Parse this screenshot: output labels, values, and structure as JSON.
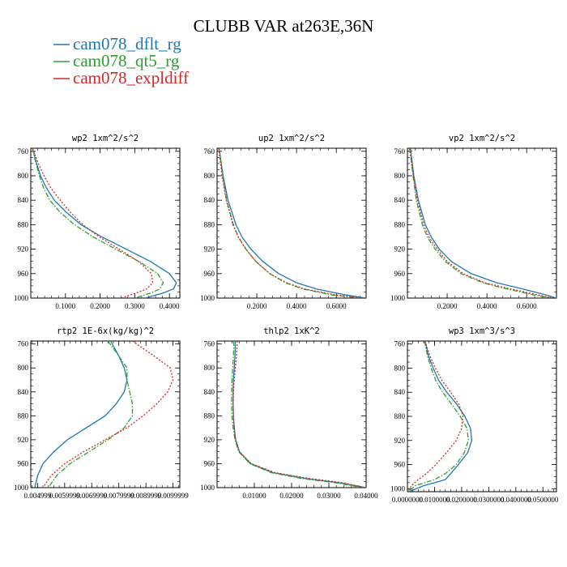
{
  "figure": {
    "title": "CLUBB VAR at263E,36N"
  },
  "legend": [
    {
      "label": "cam078_dflt_rg",
      "color": "#1f77b4",
      "dash": "solid"
    },
    {
      "label": "cam078_qt5_rg",
      "color": "#2ca02c",
      "dash": "dashdot"
    },
    {
      "label": "cam078_expldiff",
      "color": "#d62728",
      "dash": "dotted"
    }
  ],
  "chart_data": [
    {
      "type": "line",
      "title": "wp2  1xm^2/s^2",
      "xlim": [
        0,
        0.43
      ],
      "ylim": [
        1000,
        755
      ],
      "xticks": [
        0.1,
        0.2,
        0.3,
        0.4
      ],
      "xtick_labels": [
        "0.1000",
        "0.2000",
        "0.3000",
        "0.4000"
      ],
      "yticks": [
        760,
        800,
        840,
        880,
        920,
        960,
        1000
      ],
      "ytick_labels": [
        "760",
        "800",
        "840",
        "880",
        "920",
        "960",
        "1000"
      ],
      "series": [
        {
          "name": "cam078_dflt_rg",
          "y": [
            755,
            780,
            800,
            820,
            840,
            860,
            880,
            900,
            920,
            940,
            960,
            975,
            985,
            992,
            1000
          ],
          "x": [
            0.005,
            0.017,
            0.028,
            0.045,
            0.068,
            0.103,
            0.145,
            0.205,
            0.275,
            0.345,
            0.4,
            0.42,
            0.412,
            0.38,
            0.33
          ]
        },
        {
          "name": "cam078_qt5_rg",
          "y": [
            755,
            780,
            800,
            820,
            840,
            860,
            880,
            900,
            920,
            940,
            960,
            975,
            985,
            992,
            1000
          ],
          "x": [
            0.005,
            0.015,
            0.025,
            0.037,
            0.055,
            0.085,
            0.126,
            0.18,
            0.245,
            0.312,
            0.366,
            0.382,
            0.372,
            0.345,
            0.3
          ]
        },
        {
          "name": "cam078_expldiff",
          "y": [
            755,
            780,
            800,
            820,
            840,
            860,
            880,
            900,
            920,
            940,
            960,
            975,
            985,
            992,
            1000
          ],
          "x": [
            0.005,
            0.022,
            0.038,
            0.058,
            0.085,
            0.115,
            0.15,
            0.198,
            0.255,
            0.31,
            0.348,
            0.352,
            0.335,
            0.302,
            0.26
          ]
        }
      ]
    },
    {
      "type": "line",
      "title": "up2  1xm^2/s^2",
      "xlim": [
        0,
        0.75
      ],
      "ylim": [
        1000,
        755
      ],
      "xticks": [
        0.2,
        0.4,
        0.6
      ],
      "xtick_labels": [
        "0.2000",
        "0.4000",
        "0.6000"
      ],
      "yticks": [
        760,
        800,
        840,
        880,
        920,
        960,
        1000
      ],
      "ytick_labels": [
        "760",
        "800",
        "840",
        "880",
        "920",
        "960",
        "1000"
      ],
      "series": [
        {
          "name": "cam078_dflt_rg",
          "y": [
            755,
            800,
            840,
            880,
            900,
            920,
            940,
            960,
            975,
            985,
            995,
            1000
          ],
          "x": [
            0.01,
            0.03,
            0.055,
            0.095,
            0.125,
            0.17,
            0.23,
            0.31,
            0.4,
            0.5,
            0.65,
            0.75
          ]
        },
        {
          "name": "cam078_qt5_rg",
          "y": [
            755,
            800,
            840,
            880,
            900,
            920,
            940,
            960,
            975,
            985,
            995,
            1000
          ],
          "x": [
            0.01,
            0.028,
            0.048,
            0.082,
            0.107,
            0.145,
            0.195,
            0.265,
            0.345,
            0.43,
            0.58,
            0.72
          ]
        },
        {
          "name": "cam078_expldiff",
          "y": [
            755,
            800,
            840,
            880,
            900,
            920,
            940,
            960,
            975,
            985,
            995,
            1000
          ],
          "x": [
            0.008,
            0.025,
            0.046,
            0.08,
            0.106,
            0.145,
            0.195,
            0.265,
            0.35,
            0.44,
            0.6,
            0.73
          ]
        }
      ]
    },
    {
      "type": "line",
      "title": "vp2  1xm^2/s^2",
      "xlim": [
        0,
        0.75
      ],
      "ylim": [
        1000,
        755
      ],
      "xticks": [
        0.2,
        0.4,
        0.6
      ],
      "xtick_labels": [
        "0.2000",
        "0.4000",
        "0.6000"
      ],
      "yticks": [
        760,
        800,
        840,
        880,
        920,
        960,
        1000
      ],
      "ytick_labels": [
        "760",
        "800",
        "840",
        "880",
        "920",
        "960",
        "1000"
      ],
      "series": [
        {
          "name": "cam078_dflt_rg",
          "y": [
            755,
            800,
            840,
            880,
            900,
            920,
            940,
            960,
            975,
            985,
            995,
            1000
          ],
          "x": [
            0.015,
            0.032,
            0.055,
            0.09,
            0.12,
            0.16,
            0.22,
            0.32,
            0.45,
            0.58,
            0.7,
            0.75
          ]
        },
        {
          "name": "cam078_qt5_rg",
          "y": [
            755,
            800,
            840,
            880,
            900,
            920,
            940,
            960,
            975,
            985,
            995,
            1000
          ],
          "x": [
            0.012,
            0.028,
            0.045,
            0.075,
            0.1,
            0.14,
            0.19,
            0.27,
            0.38,
            0.5,
            0.64,
            0.72
          ]
        },
        {
          "name": "cam078_expldiff",
          "y": [
            755,
            800,
            840,
            880,
            900,
            920,
            940,
            960,
            975,
            985,
            995,
            1000
          ],
          "x": [
            0.01,
            0.03,
            0.05,
            0.082,
            0.108,
            0.15,
            0.2,
            0.28,
            0.39,
            0.52,
            0.66,
            0.73
          ]
        }
      ]
    },
    {
      "type": "line",
      "title": "rtp2  1E-6x(kg/kg)^2",
      "xlim": [
        0.00475,
        0.01025
      ],
      "ylim": [
        1000,
        755
      ],
      "xticks": [
        0.005,
        0.006,
        0.007,
        0.008,
        0.009,
        0.01
      ],
      "xtick_labels": [
        "0.004999",
        "0.0059999",
        "0.0069999",
        "0.0079999",
        "0.0089999",
        "0.0099999"
      ],
      "yticks": [
        760,
        800,
        840,
        880,
        920,
        960,
        1000
      ],
      "ytick_labels": [
        "760",
        "800",
        "840",
        "880",
        "920",
        "960",
        "1000"
      ],
      "series": [
        {
          "name": "cam078_dflt_rg",
          "y": [
            755,
            780,
            800,
            820,
            840,
            860,
            880,
            900,
            920,
            940,
            960,
            980,
            1000
          ],
          "x": [
            0.0077,
            0.008,
            0.0082,
            0.0083,
            0.0082,
            0.0079,
            0.0075,
            0.0068,
            0.0061,
            0.0056,
            0.0052,
            0.005,
            0.0049
          ]
        },
        {
          "name": "cam078_qt5_rg",
          "y": [
            755,
            780,
            800,
            820,
            840,
            860,
            880,
            900,
            920,
            940,
            960,
            980,
            1000
          ],
          "x": [
            0.0076,
            0.008,
            0.0083,
            0.0083,
            0.0084,
            0.0085,
            0.0085,
            0.0082,
            0.0076,
            0.0069,
            0.0062,
            0.0057,
            0.0054
          ]
        },
        {
          "name": "cam078_expldiff",
          "y": [
            755,
            780,
            800,
            820,
            840,
            860,
            880,
            900,
            920,
            940,
            960,
            980,
            1000
          ],
          "x": [
            0.0085,
            0.0093,
            0.0099,
            0.01,
            0.0098,
            0.0094,
            0.0089,
            0.0083,
            0.0075,
            0.0067,
            0.006,
            0.0055,
            0.0052
          ]
        }
      ]
    },
    {
      "type": "line",
      "title": "thlp2  1xK^2",
      "xlim": [
        0,
        0.04
      ],
      "ylim": [
        1000,
        755
      ],
      "xticks": [
        0.01,
        0.02,
        0.03,
        0.04
      ],
      "xtick_labels": [
        "0.01000",
        "0.02000",
        "0.03000",
        "0.04000"
      ],
      "yticks": [
        760,
        800,
        840,
        880,
        920,
        960,
        1000
      ],
      "ytick_labels": [
        "760",
        "800",
        "840",
        "880",
        "920",
        "960",
        "1000"
      ],
      "series": [
        {
          "name": "cam078_dflt_rg",
          "y": [
            755,
            780,
            800,
            820,
            840,
            860,
            880,
            900,
            920,
            940,
            960,
            975,
            985,
            992,
            1000
          ],
          "x": [
            0.0049,
            0.0048,
            0.0046,
            0.0044,
            0.0043,
            0.0043,
            0.0044,
            0.0046,
            0.005,
            0.006,
            0.009,
            0.015,
            0.024,
            0.033,
            0.04
          ]
        },
        {
          "name": "cam078_qt5_rg",
          "y": [
            755,
            780,
            800,
            820,
            840,
            860,
            880,
            900,
            920,
            940,
            960,
            975,
            985,
            992,
            1000
          ],
          "x": [
            0.0045,
            0.0044,
            0.0042,
            0.004,
            0.0039,
            0.0039,
            0.004,
            0.0043,
            0.0048,
            0.0058,
            0.0088,
            0.0145,
            0.023,
            0.032,
            0.039
          ]
        },
        {
          "name": "cam078_expldiff",
          "y": [
            755,
            780,
            800,
            820,
            840,
            860,
            880,
            900,
            920,
            940,
            960,
            975,
            985,
            992,
            1000
          ],
          "x": [
            0.0054,
            0.0052,
            0.0049,
            0.0046,
            0.0044,
            0.0043,
            0.0044,
            0.0046,
            0.005,
            0.006,
            0.0092,
            0.0155,
            0.025,
            0.034,
            0.0395
          ]
        }
      ]
    },
    {
      "type": "line",
      "title": "wp3  1xm^3/s^3",
      "xlim": [
        0,
        0.055
      ],
      "ylim": [
        1005,
        755
      ],
      "xticks": [
        0,
        0.01,
        0.02,
        0.03,
        0.04,
        0.05
      ],
      "xtick_labels": [
        "0.0000000",
        "0.0100000",
        "0.0200000",
        "0.0300000",
        "0.0400000",
        "0.0500000"
      ],
      "yticks": [
        760,
        800,
        840,
        880,
        920,
        960,
        1000
      ],
      "ytick_labels": [
        "760",
        "800",
        "840",
        "880",
        "920",
        "960",
        "1000"
      ],
      "series": [
        {
          "name": "cam078_dflt_rg",
          "y": [
            755,
            780,
            800,
            820,
            840,
            860,
            880,
            900,
            920,
            940,
            960,
            975,
            985,
            995,
            1005
          ],
          "x": [
            0.0065,
            0.0078,
            0.0095,
            0.0115,
            0.0145,
            0.0182,
            0.0212,
            0.0233,
            0.0237,
            0.0223,
            0.0188,
            0.016,
            0.014,
            0.006,
            0.0005
          ]
        },
        {
          "name": "cam078_qt5_rg",
          "y": [
            755,
            780,
            800,
            820,
            840,
            860,
            880,
            900,
            920,
            940,
            960,
            975,
            985,
            995,
            1005
          ],
          "x": [
            0.0063,
            0.0074,
            0.0088,
            0.0104,
            0.013,
            0.0163,
            0.0195,
            0.022,
            0.0225,
            0.021,
            0.018,
            0.014,
            0.01,
            0.003,
            0.0003
          ]
        },
        {
          "name": "cam078_expldiff",
          "y": [
            755,
            780,
            800,
            820,
            840,
            860,
            880,
            900,
            920,
            940,
            960,
            975,
            985,
            995,
            1005
          ],
          "x": [
            0.0065,
            0.0083,
            0.0103,
            0.0127,
            0.016,
            0.019,
            0.0205,
            0.02,
            0.018,
            0.0145,
            0.0105,
            0.007,
            0.004,
            0.0015,
            0.0002
          ]
        }
      ]
    }
  ]
}
